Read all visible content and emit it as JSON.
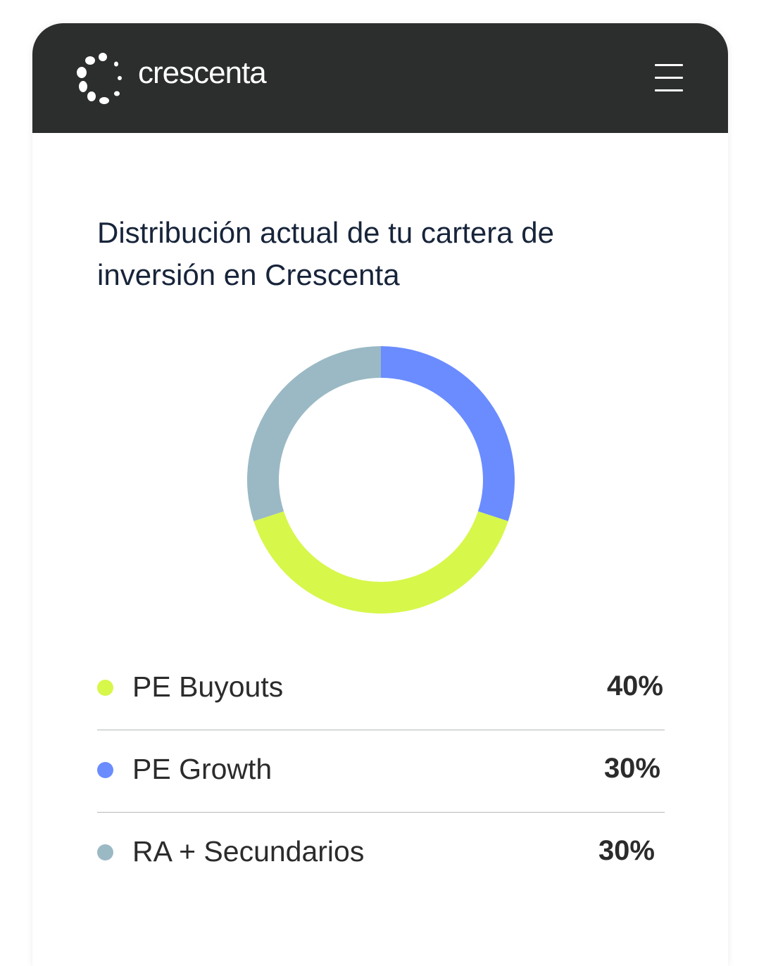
{
  "header": {
    "brand": "crescenta",
    "logo_icon": "dotted-circle-logo-icon",
    "menu_icon": "hamburger-menu-icon",
    "background": "#2c2d2d"
  },
  "main": {
    "title": "Distribución actual de tu cartera de inversión en Crescenta"
  },
  "chart_data": {
    "type": "pie",
    "categories": [
      "PE Buyouts",
      "PE Growth",
      "RA + Secundarios"
    ],
    "values": [
      40,
      30,
      30
    ],
    "colors": [
      "#d7f74b",
      "#6b8cff",
      "#9ab9c4"
    ],
    "title": "",
    "donut": true
  },
  "legend": [
    {
      "label": "PE Buyouts",
      "value": "40%",
      "color": "#d7f74b"
    },
    {
      "label": "PE Growth",
      "value": "30%",
      "color": "#6b8cff"
    },
    {
      "label": "RA + Secundarios",
      "value": "30%",
      "color": "#9ab9c4"
    }
  ]
}
